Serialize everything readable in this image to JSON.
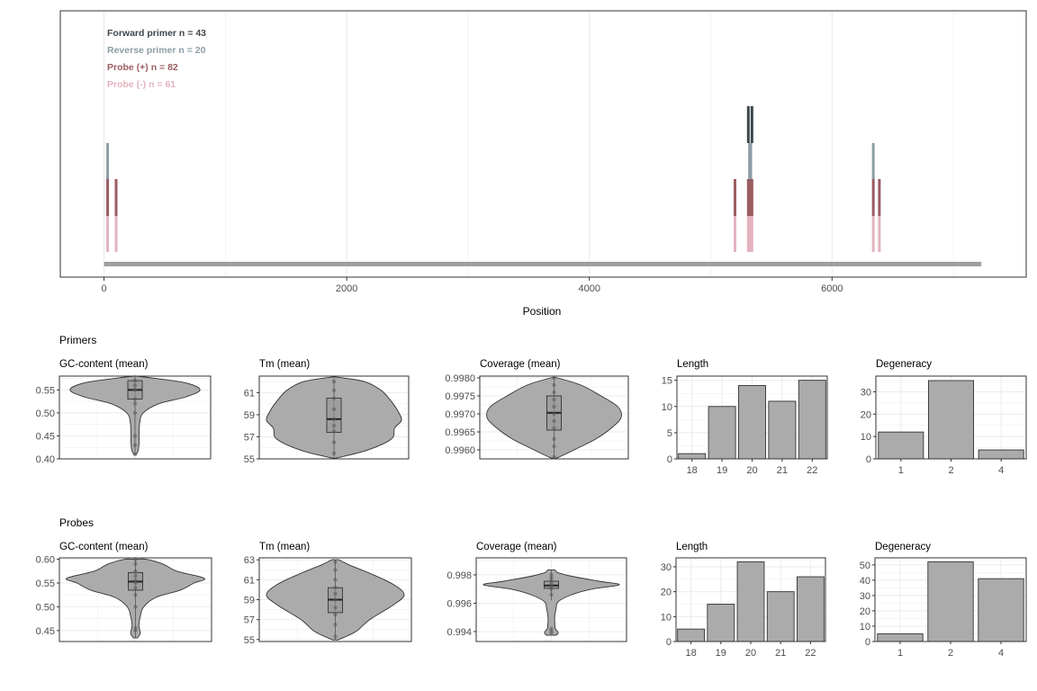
{
  "colors": {
    "forward": "#3d474e",
    "reverse": "#8c9ea5",
    "probe_pos": "#9b5d62",
    "probe_neg": "#e3b3bf",
    "genome": "#9e9e9e",
    "fill": "#ababab",
    "grid": "#ebebeb",
    "axis_text": "#4d4d4d"
  },
  "top": {
    "xlabel": "Position",
    "xticks": [
      0,
      2000,
      4000,
      6000
    ],
    "xlim": [
      -360,
      7600
    ],
    "genome_length": 7230,
    "legend": [
      {
        "label": "Forward primer n = 43",
        "key": "forward"
      },
      {
        "label": "Reverse primer n = 20",
        "key": "reverse"
      },
      {
        "label": "Probe (+) n = 82",
        "key": "probe_pos"
      },
      {
        "label": "Probe (-) n = 61",
        "key": "probe_neg"
      }
    ]
  },
  "sections": {
    "primers": "Primers",
    "probes": "Probes"
  },
  "chart_data": [
    {
      "type": "bar",
      "title": "",
      "xlabel": "Position",
      "description_series": [
        "Forward primer",
        "Reverse primer",
        "Probe (+)",
        "Probe (-)"
      ],
      "x": [
        5,
        100,
        5200,
        5310,
        5320,
        5330,
        5340,
        6320,
        6340,
        6390
      ],
      "series": [
        {
          "name": "Forward primer",
          "positions": [
            5310,
            5340
          ],
          "stack_level": 4
        },
        {
          "name": "Reverse primer",
          "positions": [
            30,
            5320,
            5330,
            6340
          ],
          "stack_level": 3
        },
        {
          "name": "Probe (+)",
          "positions": [
            30,
            100,
            5200,
            5310,
            5320,
            5330,
            5340,
            6340,
            6390
          ],
          "stack_level": 2
        },
        {
          "name": "Probe (-)",
          "positions": [
            30,
            100,
            5200,
            5310,
            5320,
            5330,
            5340,
            6340,
            6390
          ],
          "stack_level": 1
        }
      ],
      "xlim": [
        0,
        7230
      ]
    },
    {
      "type": "violin",
      "group": "Primers",
      "title": "GC-content (mean)",
      "ylim": [
        0.4,
        0.58
      ],
      "yticks": [
        0.4,
        0.45,
        0.5,
        0.55
      ],
      "violin_width": [
        [
          0.41,
          0.02
        ],
        [
          0.42,
          0.05
        ],
        [
          0.44,
          0.06
        ],
        [
          0.46,
          0.06
        ],
        [
          0.48,
          0.07
        ],
        [
          0.5,
          0.12
        ],
        [
          0.52,
          0.35
        ],
        [
          0.535,
          0.75
        ],
        [
          0.55,
          0.95
        ],
        [
          0.565,
          0.75
        ],
        [
          0.575,
          0.3
        ],
        [
          0.58,
          0.02
        ]
      ],
      "box": {
        "q1": 0.53,
        "median": 0.55,
        "q3": 0.57,
        "min": 0.41,
        "max": 0.58
      },
      "points": [
        0.41,
        0.43,
        0.45,
        0.5,
        0.52,
        0.53,
        0.55,
        0.55,
        0.56,
        0.57
      ]
    },
    {
      "type": "violin",
      "group": "Primers",
      "title": "Tm (mean)",
      "ylim": [
        55,
        62.5
      ],
      "yticks": [
        55,
        57,
        59,
        61
      ],
      "violin_width": [
        [
          55.1,
          0.05
        ],
        [
          55.8,
          0.5
        ],
        [
          56.8,
          0.85
        ],
        [
          57.8,
          0.9
        ],
        [
          58.5,
          1.0
        ],
        [
          59.3,
          0.95
        ],
        [
          60.2,
          0.85
        ],
        [
          61.2,
          0.7
        ],
        [
          62.0,
          0.45
        ],
        [
          62.4,
          0.05
        ]
      ],
      "box": {
        "q1": 57.4,
        "median": 58.6,
        "q3": 60.5,
        "min": 55.2,
        "max": 62.3
      },
      "points": [
        55.5,
        56.5,
        57.5,
        58.0,
        58.6,
        59.5,
        60.5,
        61.2,
        62.0
      ]
    },
    {
      "type": "violin",
      "group": "Primers",
      "title": "Coverage (mean)",
      "ylim": [
        0.99575,
        0.99805
      ],
      "yticks": [
        0.996,
        0.9965,
        0.997,
        0.9975,
        0.998
      ],
      "violin_width": [
        [
          0.99578,
          0.05
        ],
        [
          0.996,
          0.3
        ],
        [
          0.9963,
          0.62
        ],
        [
          0.9966,
          0.85
        ],
        [
          0.9969,
          1.0
        ],
        [
          0.9972,
          0.95
        ],
        [
          0.9975,
          0.7
        ],
        [
          0.9978,
          0.4
        ],
        [
          0.998,
          0.05
        ]
      ],
      "box": {
        "q1": 0.99655,
        "median": 0.99703,
        "q3": 0.9975,
        "min": 0.99578,
        "max": 0.998
      },
      "points": [
        0.9958,
        0.9961,
        0.9963,
        0.9966,
        0.9968,
        0.997,
        0.9972,
        0.9974,
        0.9976,
        0.9978,
        0.998
      ]
    },
    {
      "type": "bar",
      "group": "Primers",
      "title": "Length",
      "categories": [
        "18",
        "19",
        "20",
        "21",
        "22"
      ],
      "values": [
        1,
        10,
        14,
        11,
        15
      ],
      "ylim": [
        0,
        15.8
      ],
      "yticks": [
        0,
        5,
        10,
        15
      ]
    },
    {
      "type": "bar",
      "group": "Primers",
      "title": "Degeneracy",
      "categories": [
        "1",
        "2",
        "4"
      ],
      "values": [
        12,
        35,
        4
      ],
      "ylim": [
        0,
        37
      ],
      "yticks": [
        0,
        10,
        20,
        30
      ]
    },
    {
      "type": "violin",
      "group": "Probes",
      "title": "GC-content (mean)",
      "ylim": [
        0.427,
        0.603
      ],
      "yticks": [
        0.45,
        0.5,
        0.55,
        0.6
      ],
      "violin_width": [
        [
          0.435,
          0.03
        ],
        [
          0.445,
          0.07
        ],
        [
          0.46,
          0.05
        ],
        [
          0.48,
          0.07
        ],
        [
          0.5,
          0.12
        ],
        [
          0.52,
          0.3
        ],
        [
          0.535,
          0.65
        ],
        [
          0.55,
          0.85
        ],
        [
          0.56,
          1.0
        ],
        [
          0.575,
          0.6
        ],
        [
          0.59,
          0.4
        ],
        [
          0.6,
          0.15
        ]
      ],
      "box": {
        "q1": 0.535,
        "median": 0.553,
        "q3": 0.572,
        "min": 0.435,
        "max": 0.6
      },
      "points": [
        0.45,
        0.455,
        0.5,
        0.525,
        0.54,
        0.55,
        0.555,
        0.565,
        0.575,
        0.59,
        0.6
      ]
    },
    {
      "type": "violin",
      "group": "Probes",
      "title": "Tm (mean)",
      "ylim": [
        54.8,
        63.2
      ],
      "yticks": [
        55,
        57,
        59,
        61,
        63
      ],
      "violin_width": [
        [
          55.0,
          0.05
        ],
        [
          55.8,
          0.3
        ],
        [
          57.0,
          0.5
        ],
        [
          58.5,
          0.85
        ],
        [
          59.5,
          1.0
        ],
        [
          60.5,
          0.85
        ],
        [
          61.5,
          0.55
        ],
        [
          62.5,
          0.2
        ],
        [
          63.0,
          0.05
        ]
      ],
      "box": {
        "q1": 57.7,
        "median": 59.0,
        "q3": 60.2,
        "min": 55.0,
        "max": 63.0
      },
      "points": [
        55.3,
        56.5,
        57.5,
        58.2,
        59.0,
        59.6,
        60.2,
        61.0,
        62.0,
        62.8
      ]
    },
    {
      "type": "violin",
      "group": "Probes",
      "title": "Coverage (mean)",
      "ylim": [
        0.9933,
        0.9992
      ],
      "yticks": [
        0.994,
        0.996,
        0.998
      ],
      "violin_width": [
        [
          0.99375,
          0.07
        ],
        [
          0.99395,
          0.1
        ],
        [
          0.9942,
          0.06
        ],
        [
          0.9946,
          0.05
        ],
        [
          0.9951,
          0.05
        ],
        [
          0.9956,
          0.07
        ],
        [
          0.9961,
          0.1
        ],
        [
          0.9966,
          0.3
        ],
        [
          0.997,
          0.6
        ],
        [
          0.9973,
          1.0
        ],
        [
          0.99755,
          0.7
        ],
        [
          0.9979,
          0.3
        ],
        [
          0.99815,
          0.1
        ],
        [
          0.99835,
          0.05
        ]
      ],
      "box": {
        "q1": 0.99705,
        "median": 0.99725,
        "q3": 0.99755,
        "min": 0.9962,
        "max": 0.9983
      },
      "points": [
        0.9939,
        0.99405,
        0.9942,
        0.9966,
        0.997,
        0.9972,
        0.9974,
        0.9976,
        0.9978,
        0.998
      ]
    },
    {
      "type": "bar",
      "group": "Probes",
      "title": "Length",
      "categories": [
        "18",
        "19",
        "20",
        "21",
        "22"
      ],
      "values": [
        5,
        15,
        32,
        20,
        26
      ],
      "ylim": [
        0,
        33.6
      ],
      "yticks": [
        0,
        10,
        20,
        30
      ]
    },
    {
      "type": "bar",
      "group": "Probes",
      "title": "Degeneracy",
      "categories": [
        "1",
        "2",
        "4"
      ],
      "values": [
        5,
        52,
        41
      ],
      "ylim": [
        0,
        54.6
      ],
      "yticks": [
        0,
        10,
        20,
        30,
        40,
        50
      ]
    }
  ]
}
